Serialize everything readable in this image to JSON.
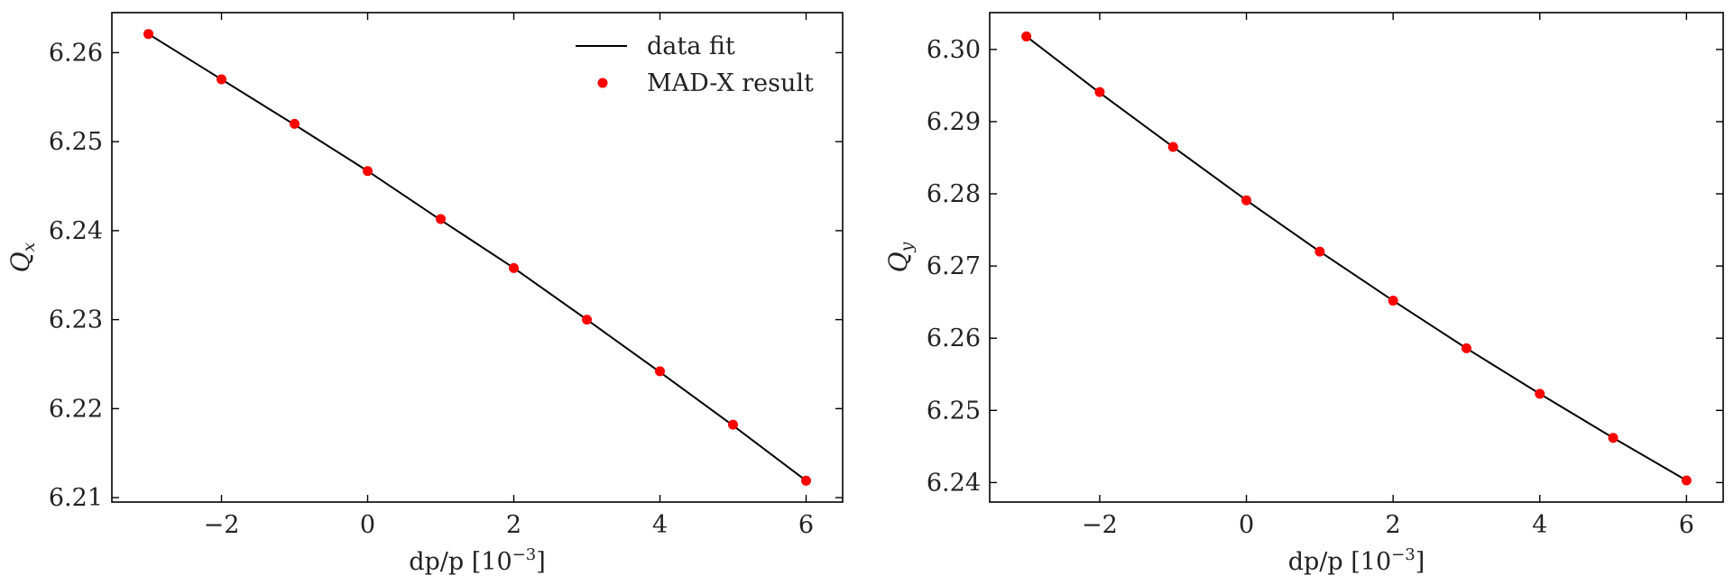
{
  "chart_data": [
    {
      "type": "line",
      "xlabel": "dp/p [10",
      "xlabel_exp": "−3",
      "xlabel_close": "]",
      "ylabel": "Q",
      "ylabel_sub": "x",
      "xlim": [
        -3.5,
        6.5
      ],
      "ylim": [
        6.2095,
        6.2645
      ],
      "xticks": [
        -2,
        0,
        2,
        4,
        6
      ],
      "xtick_labels": [
        "−2",
        "0",
        "2",
        "4",
        "6"
      ],
      "yticks": [
        6.21,
        6.22,
        6.23,
        6.24,
        6.25,
        6.26
      ],
      "ytick_labels": [
        "6.21",
        "6.22",
        "6.23",
        "6.24",
        "6.25",
        "6.26"
      ],
      "grid": false,
      "legend": {
        "placement": "top-right",
        "entries": [
          "data fit",
          "MAD-X result"
        ]
      },
      "series": [
        {
          "name": "data fit",
          "kind": "line",
          "color": "#000000",
          "x": [
            -3,
            -2,
            -1,
            0,
            1,
            2,
            3,
            4,
            5,
            6
          ],
          "y": [
            6.2621,
            6.257,
            6.2519,
            6.2467,
            6.2412,
            6.2358,
            6.23,
            6.2241,
            6.2181,
            6.2119
          ]
        },
        {
          "name": "MAD-X result",
          "kind": "scatter",
          "color": "#ff0000",
          "x": [
            -3,
            -2,
            -1,
            0,
            1,
            2,
            3,
            4,
            5,
            6
          ],
          "y": [
            6.2621,
            6.257,
            6.252,
            6.2467,
            6.2413,
            6.2358,
            6.23,
            6.2242,
            6.2182,
            6.2119
          ]
        }
      ]
    },
    {
      "type": "line",
      "xlabel": "dp/p [10",
      "xlabel_exp": "−3",
      "xlabel_close": "]",
      "ylabel": "Q",
      "ylabel_sub": "y",
      "xlim": [
        -3.5,
        6.5
      ],
      "ylim": [
        6.2373,
        6.3051
      ],
      "xticks": [
        -2,
        0,
        2,
        4,
        6
      ],
      "xtick_labels": [
        "−2",
        "0",
        "2",
        "4",
        "6"
      ],
      "yticks": [
        6.24,
        6.25,
        6.26,
        6.27,
        6.28,
        6.29,
        6.3
      ],
      "ytick_labels": [
        "6.24",
        "6.25",
        "6.26",
        "6.27",
        "6.28",
        "6.29",
        "6.30"
      ],
      "grid": false,
      "series": [
        {
          "name": "data fit",
          "kind": "line",
          "color": "#000000",
          "x": [
            -3,
            -2,
            -1,
            0,
            1,
            2,
            3,
            4,
            5,
            6
          ],
          "y": [
            6.3018,
            6.294,
            6.2865,
            6.2791,
            6.272,
            6.2652,
            6.2586,
            6.2523,
            6.2462,
            6.2403
          ]
        },
        {
          "name": "MAD-X result",
          "kind": "scatter",
          "color": "#ff0000",
          "x": [
            -3,
            -2,
            -1,
            0,
            1,
            2,
            3,
            4,
            5,
            6
          ],
          "y": [
            6.3018,
            6.2941,
            6.2865,
            6.2791,
            6.272,
            6.2652,
            6.2586,
            6.2523,
            6.2462,
            6.2403
          ]
        }
      ]
    }
  ]
}
